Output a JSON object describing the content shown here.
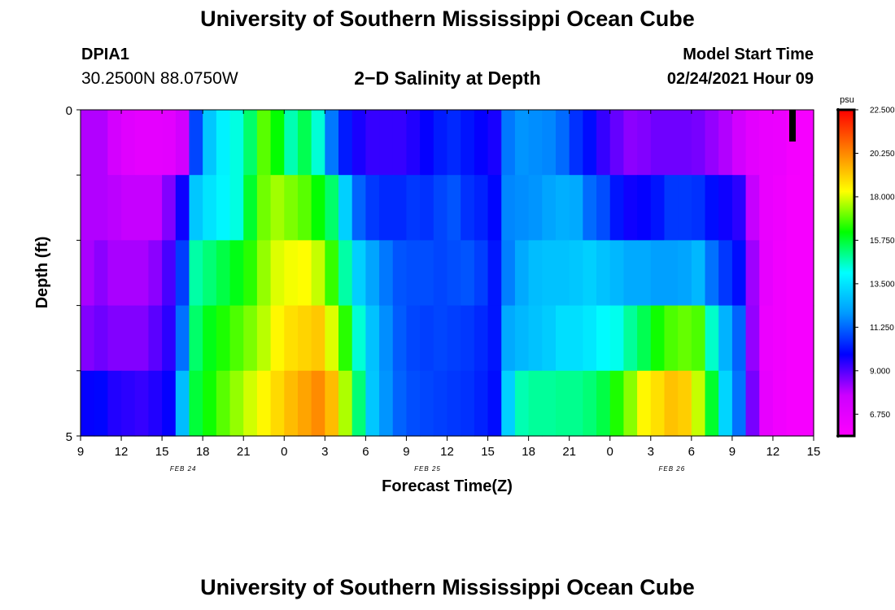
{
  "header": {
    "title": "University of Southern Mississippi Ocean Cube",
    "station_name": "DPIA1",
    "station_coords": "30.2500N 88.0750W",
    "chart_title": "2−D Salinity at Depth",
    "start_label": "Model Start Time",
    "start_value": "02/24/2021 Hour 09"
  },
  "footer": {
    "title": "University of Southern Mississippi Ocean Cube"
  },
  "chart_data": {
    "type": "heatmap",
    "title": "2−D Salinity at Depth",
    "xlabel": "Forecast Time(Z)",
    "ylabel": "Depth (ft)",
    "x_start": "02/24/2021 09Z",
    "x_step_hours": 1,
    "xlim_hours": [
      0,
      54
    ],
    "x_tick_labels": [
      "9",
      "12",
      "15",
      "18",
      "21",
      "0",
      "3",
      "6",
      "9",
      "12",
      "15",
      "18",
      "21",
      "0",
      "3",
      "6",
      "9",
      "12",
      "15"
    ],
    "x_date_labels": [
      {
        "label": "FEB 24",
        "at_tick": 3
      },
      {
        "label": "FEB 25",
        "at_tick": 9
      },
      {
        "label": "FEB 26",
        "at_tick": 15
      }
    ],
    "ylim": [
      0,
      5
    ],
    "y_tick_labels": [
      "0",
      "5"
    ],
    "depth_layers": 5,
    "colorbar": {
      "unit": "psu",
      "range": [
        5.625,
        22.5
      ],
      "tick_values": [
        22.5,
        20.25,
        18.0,
        15.75,
        13.5,
        11.25,
        9.0,
        6.75
      ],
      "tick_labels": [
        "22.500",
        "20.250",
        "18.000",
        "15.750",
        "13.500",
        "11.250",
        "9.000",
        "6.750"
      ],
      "colors": [
        "#ff00ff",
        "#cc00ff",
        "#0000ff",
        "#0099ff",
        "#00ffff",
        "#00ff00",
        "#ffff00",
        "#ff8000",
        "#ff0000"
      ]
    },
    "salinity_psu": [
      [
        8.0,
        8.0,
        7.4,
        6.9,
        6.7,
        6.7,
        6.8,
        7.5,
        10.8,
        12.9,
        13.8,
        14.3,
        15.3,
        16.9,
        16.2,
        14.7,
        15.5,
        14.4,
        11.5,
        10.2,
        9.6,
        9.3,
        9.3,
        9.3,
        9.5,
        9.8,
        10.2,
        10.4,
        10.1,
        9.8,
        9.6,
        11.5,
        11.9,
        11.8,
        11.7,
        11.3,
        10.5,
        10.0,
        9.3,
        8.8,
        8.4,
        8.5,
        8.7,
        8.7,
        8.7,
        8.6,
        8.3,
        8.0,
        7.5,
        6.8,
        6.5,
        6.4,
        6.1,
        6.0,
        6.0
      ],
      [
        8.0,
        8.0,
        7.9,
        7.8,
        7.8,
        7.8,
        8.5,
        9.7,
        12.9,
        13.5,
        13.9,
        14.3,
        15.8,
        17.1,
        17.5,
        17.2,
        16.9,
        16.2,
        15.3,
        13.1,
        11.2,
        10.6,
        10.4,
        10.4,
        10.6,
        10.5,
        10.8,
        11.0,
        10.5,
        10.3,
        9.9,
        11.7,
        11.8,
        11.9,
        12.2,
        12.4,
        12.3,
        11.3,
        10.9,
        10.1,
        9.7,
        9.8,
        10.1,
        10.6,
        10.6,
        10.5,
        10.0,
        9.7,
        9.4,
        7.8,
        6.5,
        6.3,
        6.0,
        6.0,
        6.0
      ],
      [
        8.1,
        8.4,
        8.1,
        8.1,
        8.1,
        8.4,
        9.1,
        10.7,
        14.8,
        15.2,
        15.6,
        16.0,
        16.5,
        17.4,
        18.0,
        18.2,
        18.3,
        17.8,
        16.6,
        14.8,
        13.1,
        12.2,
        11.5,
        11.0,
        10.9,
        10.9,
        10.8,
        10.9,
        11.0,
        10.7,
        10.1,
        11.6,
        12.3,
        12.7,
        12.8,
        12.8,
        12.9,
        13.1,
        12.8,
        12.6,
        12.3,
        12.3,
        12.1,
        12.1,
        12.2,
        12.6,
        11.4,
        10.6,
        10.0,
        8.2,
        6.6,
        6.2,
        6.0,
        6.0,
        6.0
      ],
      [
        8.5,
        8.7,
        8.5,
        8.5,
        8.5,
        8.9,
        9.4,
        11.4,
        15.3,
        16.0,
        16.4,
        16.8,
        17.2,
        17.7,
        18.4,
        18.8,
        19.0,
        19.2,
        18.0,
        16.5,
        14.4,
        12.8,
        11.8,
        11.1,
        10.8,
        10.7,
        10.8,
        10.7,
        10.6,
        10.4,
        10.1,
        12.3,
        12.6,
        12.8,
        13.0,
        13.4,
        13.4,
        13.6,
        14.0,
        14.2,
        14.9,
        15.5,
        16.3,
        16.8,
        17.0,
        16.8,
        14.5,
        12.5,
        11.2,
        8.3,
        6.4,
        6.2,
        6.0,
        6.0,
        6.0
      ],
      [
        9.8,
        9.9,
        9.5,
        9.4,
        9.3,
        9.5,
        9.8,
        12.7,
        15.7,
        16.3,
        16.9,
        17.4,
        17.9,
        18.4,
        18.9,
        19.4,
        19.8,
        20.2,
        19.4,
        17.6,
        15.2,
        12.9,
        11.9,
        11.2,
        10.9,
        10.8,
        10.7,
        10.6,
        10.5,
        10.3,
        10.0,
        13.1,
        14.7,
        14.9,
        14.9,
        15.0,
        15.0,
        15.2,
        15.6,
        16.4,
        17.3,
        18.4,
        18.8,
        19.3,
        19.1,
        17.8,
        15.8,
        13.2,
        11.4,
        8.6,
        6.6,
        6.2,
        6.0,
        6.0,
        6.0
      ]
    ]
  }
}
